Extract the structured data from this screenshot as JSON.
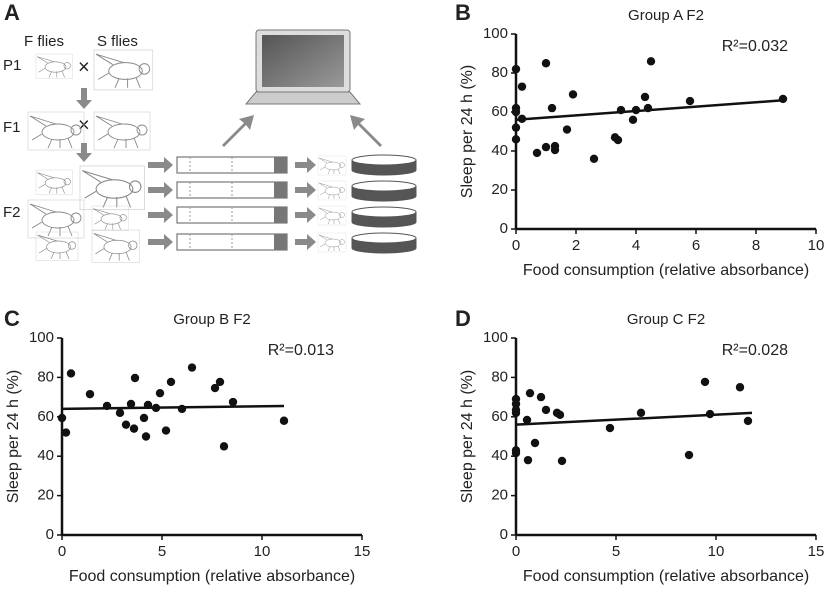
{
  "panel_a": {
    "label": "A",
    "f_flies": "F flies",
    "s_flies": "S flies",
    "generations": [
      "P1",
      "F1",
      "F2"
    ],
    "cross_symbol": "×"
  },
  "chart_data": [
    {
      "type": "scatter",
      "panel": "B",
      "title": "Group A F2",
      "annotation": "R²=0.032",
      "x_label": "Food consumption (relative absorbance)",
      "y_label": "Sleep per 24 h (%)",
      "xlim": [
        0,
        10
      ],
      "xticks": [
        0,
        2,
        4,
        6,
        8,
        10
      ],
      "ylim": [
        0,
        100
      ],
      "yticks": [
        0,
        20,
        40,
        60,
        80,
        100
      ],
      "color": "#111111",
      "x": [
        1.0,
        0,
        0.2,
        0,
        0,
        0,
        0,
        0.2,
        0.7,
        1.0,
        1.2,
        1.3,
        1.3,
        1.7,
        1.9,
        2.6,
        3.3,
        3.4,
        3.5,
        3.9,
        4.0,
        4.4,
        4.3,
        4.5,
        5.8,
        8.9
      ],
      "values": [
        85,
        82,
        73,
        62,
        60,
        52,
        46,
        56.5,
        39,
        42,
        62,
        42.5,
        40.5,
        51,
        69,
        36,
        47,
        45.6,
        61,
        56,
        61,
        62,
        67.7,
        86,
        65.6,
        66.7
      ],
      "fit": {
        "x": [
          0,
          8.9
        ],
        "values": [
          56,
          66
        ]
      }
    },
    {
      "type": "scatter",
      "panel": "C",
      "title": "Group B F2",
      "annotation": "R²=0.013",
      "x_label": "Food consumption (relative absorbance)",
      "y_label": "Sleep per 24 h (%)",
      "xlim": [
        0,
        15
      ],
      "xticks": [
        0,
        5,
        10,
        15
      ],
      "ylim": [
        0,
        100
      ],
      "yticks": [
        0,
        20,
        40,
        60,
        80,
        100
      ],
      "color": "#111111",
      "x": [
        0.45,
        0,
        0.2,
        1.4,
        2.25,
        2.9,
        3.2,
        3.45,
        3.6,
        3.65,
        4.1,
        4.2,
        4.3,
        4.7,
        4.9,
        5.2,
        5.45,
        6.0,
        6.5,
        7.65,
        7.9,
        8.1,
        8.55,
        11.1
      ],
      "values": [
        82,
        59.4,
        52,
        71.5,
        65.5,
        62,
        56,
        66.5,
        54,
        79.7,
        59.4,
        50,
        66,
        64.5,
        72,
        53,
        77.7,
        64,
        85,
        74.6,
        77.7,
        45,
        67.5,
        58
      ],
      "fit": {
        "x": [
          0,
          11.1
        ],
        "values": [
          64,
          65.5
        ]
      }
    },
    {
      "type": "scatter",
      "panel": "D",
      "title": "Group C F2",
      "annotation": "R²=0.028",
      "x_label": "Food consumption (relative absorbance)",
      "y_label": "Sleep per 24 h (%)",
      "xlim": [
        0,
        15
      ],
      "xticks": [
        0,
        5,
        10,
        15
      ],
      "ylim": [
        0,
        100
      ],
      "yticks": [
        0,
        20,
        40,
        60,
        80,
        100
      ],
      "color": "#111111",
      "x": [
        0,
        0,
        0,
        0,
        0,
        0,
        0.55,
        0.7,
        0.6,
        0.95,
        1.25,
        1.5,
        2.05,
        2.2,
        2.3,
        4.7,
        6.25,
        8.65,
        9.45,
        9.7,
        11.2,
        11.6
      ],
      "values": [
        69,
        66.5,
        63.5,
        62,
        43,
        41.6,
        58.4,
        72,
        38,
        46.7,
        70,
        63.5,
        62,
        61,
        37.6,
        54.3,
        62,
        40.6,
        77.7,
        61.4,
        75,
        57.9
      ],
      "fit": {
        "x": [
          0,
          11.8
        ],
        "values": [
          56,
          62
        ]
      }
    }
  ]
}
